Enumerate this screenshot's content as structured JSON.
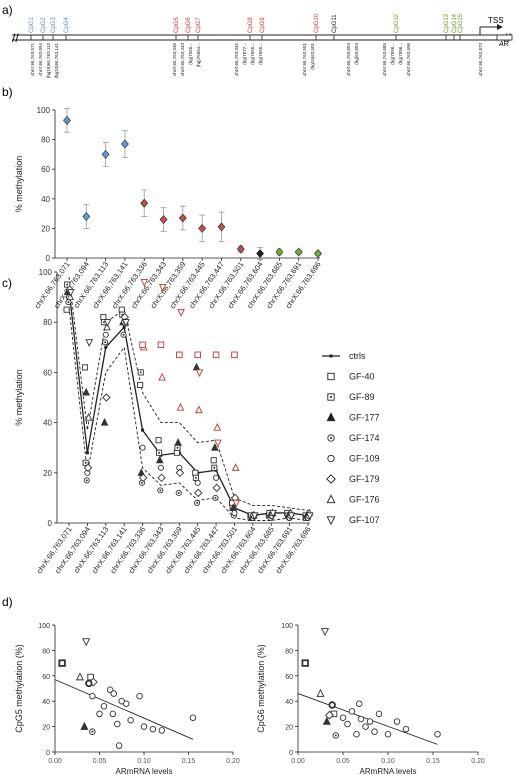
{
  "panel_labels": {
    "a": "a)",
    "b": "b)",
    "c": "c)",
    "d": "d)"
  },
  "colors": {
    "blue": "#5b8fd0",
    "red": "#c0392b",
    "green": "#6a9a2a",
    "black": "#222222",
    "grey": "#888888",
    "diamond_blue": "#5b9bd5",
    "diamond_red": "#c0504d",
    "diamond_green": "#7aa83a"
  },
  "panel_a": {
    "tss_label": "TSS",
    "gene_label": "AR",
    "cpg_groups": [
      {
        "color": "blue",
        "names": [
          "CpG1",
          "CpG2",
          "CpG3",
          "CpG4"
        ]
      },
      {
        "color": "red",
        "names": [
          "CpG5",
          "CpG6",
          "CpG7"
        ]
      },
      {
        "color": "red",
        "names": [
          "CpG8",
          "CpG9"
        ]
      },
      {
        "color": "red",
        "names": [
          "CpG10"
        ]
      },
      {
        "color": "black",
        "names": [
          "CpG11"
        ]
      },
      {
        "color": "green",
        "names": [
          "CpG12"
        ]
      },
      {
        "color": "green",
        "names": [
          "CpG13",
          "CpG14",
          "CpG15"
        ]
      }
    ],
    "position_labels": [
      [
        "chrX:66,763,071",
        "chrX:66,763,094",
        "(hg19)66,763,113",
        "(hg19)66,763,141"
      ],
      [
        "chrX:66,763,336",
        "chrX:66,763,343",
        "(hg)7555...",
        "(hg)75654..."
      ],
      [
        "chrX:66,763,345",
        "(hg)7877...",
        "(hg)7656...",
        "(hg)7656..."
      ],
      [
        "chrX:66,763,501",
        "(hg19)63,501"
      ],
      [
        "chrX:66,763,604",
        "(hg)63,604"
      ],
      [
        "chrX:66,763,685",
        "(hg)7898...",
        "(hg)7896...",
        "chrX:66,763,696"
      ],
      [
        "chrX:66,763,873"
      ]
    ]
  },
  "chart_data": [
    {
      "type": "scatter",
      "panel": "b",
      "ylabel": "% methylation",
      "ylim": [
        0,
        100
      ],
      "yticks": [
        0,
        20,
        40,
        60,
        80,
        100
      ],
      "grid": false,
      "categories": [
        "chrX:66,763,071",
        "chrX:66,763,094",
        "chrX:66,763,113",
        "chrX:66,763,141",
        "chrX:66,763,336",
        "chrX:66,763,343",
        "chrX:66,763,359",
        "chrX:66,763,445",
        "chrX:66,763,447",
        "chrX:66,763,501",
        "chrX:66,763,604",
        "chrX:66,763,685",
        "chrX:66,763,691",
        "chrX:66,763,696"
      ],
      "values": [
        93,
        28,
        70,
        77,
        37,
        26,
        27,
        20,
        21,
        6,
        3,
        4,
        4,
        3
      ],
      "errors": [
        8,
        8,
        8,
        9,
        9,
        8,
        8,
        9,
        10,
        2,
        4,
        2,
        1,
        1
      ],
      "marker_colors": [
        "blue",
        "blue",
        "blue",
        "blue",
        "red",
        "red",
        "red",
        "red",
        "red",
        "red",
        "black",
        "green",
        "green",
        "green"
      ]
    },
    {
      "type": "line",
      "panel": "c",
      "ylabel": "% methylation",
      "ylim": [
        0,
        100
      ],
      "yticks": [
        0,
        20,
        40,
        60,
        80,
        100
      ],
      "legend_position": "right",
      "categories": [
        "chrX:66,763,071",
        "chrX:66,763,094",
        "chrX:66,763,113",
        "chrX:66,763,141",
        "chrX:66,763,336",
        "chrX:66,763,343",
        "chrX:66,763,359",
        "chrX:66,763,445",
        "chrX:66,763,447",
        "chrX:66,763,501",
        "chrX:66,763,604",
        "chrX:66,763,685",
        "chrX:66,763,691",
        "chrX:66,763,696"
      ],
      "ctrls_mean": [
        93,
        28,
        70,
        78,
        37,
        27,
        28,
        20,
        21,
        6,
        3,
        4,
        4,
        3
      ],
      "ctrls_upper": [
        98,
        37,
        80,
        85,
        52,
        40,
        40,
        32,
        33,
        10,
        7,
        7,
        6,
        5
      ],
      "ctrls_lower": [
        86,
        20,
        60,
        70,
        22,
        15,
        16,
        9,
        10,
        2,
        1,
        1,
        2,
        1
      ],
      "series": [
        {
          "name": "GF-40",
          "marker": "square",
          "values": [
            85,
            62,
            82,
            85,
            55,
            33,
            28,
            20,
            25,
            8,
            3,
            3,
            4,
            3
          ]
        },
        {
          "name": "GF-89",
          "marker": "square-dot",
          "values": [
            95,
            24,
            80,
            83,
            60,
            28,
            30,
            18,
            22,
            6,
            3,
            4,
            3,
            2
          ]
        },
        {
          "name": "GF-177",
          "marker": "triangle-filled",
          "values": [
            92,
            52,
            40,
            80,
            20,
            25,
            32,
            62,
            30,
            6,
            2,
            3,
            3,
            3
          ]
        },
        {
          "name": "GF-174",
          "marker": "circle-dot",
          "values": [
            88,
            17,
            72,
            75,
            16,
            13,
            12,
            8,
            10,
            3,
            2,
            2,
            2,
            2
          ]
        },
        {
          "name": "GF-109",
          "marker": "circle",
          "values": [
            90,
            20,
            75,
            80,
            30,
            22,
            22,
            16,
            18,
            4,
            2,
            3,
            2,
            2
          ]
        },
        {
          "name": "GF-179",
          "marker": "diamond",
          "values": [
            93,
            22,
            50,
            82,
            18,
            18,
            20,
            12,
            14,
            10,
            3,
            3,
            3,
            3
          ]
        },
        {
          "name": "GF-176",
          "marker": "triangle",
          "values": [
            90,
            42,
            78,
            80,
            70,
            58,
            46,
            45,
            38,
            22,
            3,
            4,
            4,
            4
          ]
        },
        {
          "name": "GF-107",
          "marker": "triangle-down",
          "values": [
            92,
            72,
            80,
            80,
            96,
            94,
            84,
            60,
            32,
            8,
            3,
            4,
            3,
            3
          ]
        }
      ],
      "red_squares": [
        null,
        null,
        null,
        null,
        71,
        71,
        67,
        67,
        67,
        67,
        null,
        null,
        null,
        null
      ]
    },
    {
      "type": "scatter",
      "panel": "d-left",
      "xlabel": "ARmRNA levels",
      "ylabel": "CpG5 methylation (%)",
      "xlim": [
        0,
        0.2
      ],
      "ylim": [
        0,
        100
      ],
      "xticks": [
        "0.00",
        "0.05",
        "0.10",
        "0.15",
        "0.20"
      ],
      "yticks": [
        0,
        20,
        40,
        60,
        80,
        100
      ],
      "points": [
        {
          "x": 0.008,
          "y": 70,
          "m": "square-bold"
        },
        {
          "x": 0.035,
          "y": 87,
          "m": "triangle-down"
        },
        {
          "x": 0.028,
          "y": 59,
          "m": "triangle"
        },
        {
          "x": 0.04,
          "y": 59,
          "m": "square"
        },
        {
          "x": 0.043,
          "y": 55,
          "m": "diamond"
        },
        {
          "x": 0.038,
          "y": 54,
          "m": "circle-bold"
        },
        {
          "x": 0.033,
          "y": 20,
          "m": "triangle-filled"
        },
        {
          "x": 0.042,
          "y": 16,
          "m": "circle-dot"
        },
        {
          "x": 0.042,
          "y": 44,
          "m": "circle"
        },
        {
          "x": 0.05,
          "y": 30,
          "m": "circle"
        },
        {
          "x": 0.055,
          "y": 36,
          "m": "circle"
        },
        {
          "x": 0.062,
          "y": 49,
          "m": "circle"
        },
        {
          "x": 0.066,
          "y": 46,
          "m": "circle"
        },
        {
          "x": 0.065,
          "y": 30,
          "m": "circle"
        },
        {
          "x": 0.07,
          "y": 22,
          "m": "circle"
        },
        {
          "x": 0.072,
          "y": 5,
          "m": "circle"
        },
        {
          "x": 0.075,
          "y": 40,
          "m": "circle"
        },
        {
          "x": 0.08,
          "y": 38,
          "m": "circle"
        },
        {
          "x": 0.085,
          "y": 25,
          "m": "circle"
        },
        {
          "x": 0.095,
          "y": 44,
          "m": "circle"
        },
        {
          "x": 0.1,
          "y": 20,
          "m": "circle"
        },
        {
          "x": 0.11,
          "y": 18,
          "m": "circle"
        },
        {
          "x": 0.12,
          "y": 17,
          "m": "circle"
        },
        {
          "x": 0.155,
          "y": 27,
          "m": "circle"
        }
      ],
      "regression": [
        [
          0.0,
          57
        ],
        [
          0.155,
          10
        ]
      ]
    },
    {
      "type": "scatter",
      "panel": "d-right",
      "xlabel": "ARmRNA levels",
      "ylabel": "CpG6 methylation (%)",
      "xlim": [
        0,
        0.2
      ],
      "ylim": [
        0,
        100
      ],
      "xticks": [
        "0.00",
        "0.05",
        "0.10",
        "0.15",
        "0.20"
      ],
      "yticks": [
        0,
        20,
        40,
        60,
        80,
        100
      ],
      "points": [
        {
          "x": 0.008,
          "y": 70,
          "m": "square-bold"
        },
        {
          "x": 0.03,
          "y": 95,
          "m": "triangle-down"
        },
        {
          "x": 0.025,
          "y": 46,
          "m": "triangle"
        },
        {
          "x": 0.04,
          "y": 30,
          "m": "square"
        },
        {
          "x": 0.035,
          "y": 29,
          "m": "diamond"
        },
        {
          "x": 0.032,
          "y": 24,
          "m": "triangle-filled"
        },
        {
          "x": 0.038,
          "y": 37,
          "m": "circle-bold"
        },
        {
          "x": 0.042,
          "y": 13,
          "m": "circle-dot"
        },
        {
          "x": 0.05,
          "y": 27,
          "m": "circle"
        },
        {
          "x": 0.055,
          "y": 22,
          "m": "circle"
        },
        {
          "x": 0.06,
          "y": 32,
          "m": "circle"
        },
        {
          "x": 0.065,
          "y": 14,
          "m": "circle"
        },
        {
          "x": 0.068,
          "y": 38,
          "m": "circle"
        },
        {
          "x": 0.07,
          "y": 26,
          "m": "circle"
        },
        {
          "x": 0.075,
          "y": 20,
          "m": "circle"
        },
        {
          "x": 0.08,
          "y": 24,
          "m": "circle"
        },
        {
          "x": 0.085,
          "y": 16,
          "m": "circle"
        },
        {
          "x": 0.09,
          "y": 30,
          "m": "circle"
        },
        {
          "x": 0.1,
          "y": 14,
          "m": "circle"
        },
        {
          "x": 0.11,
          "y": 24,
          "m": "circle"
        },
        {
          "x": 0.12,
          "y": 18,
          "m": "circle"
        },
        {
          "x": 0.155,
          "y": 14,
          "m": "circle"
        }
      ],
      "regression": [
        [
          0.0,
          46
        ],
        [
          0.155,
          6
        ]
      ]
    }
  ]
}
